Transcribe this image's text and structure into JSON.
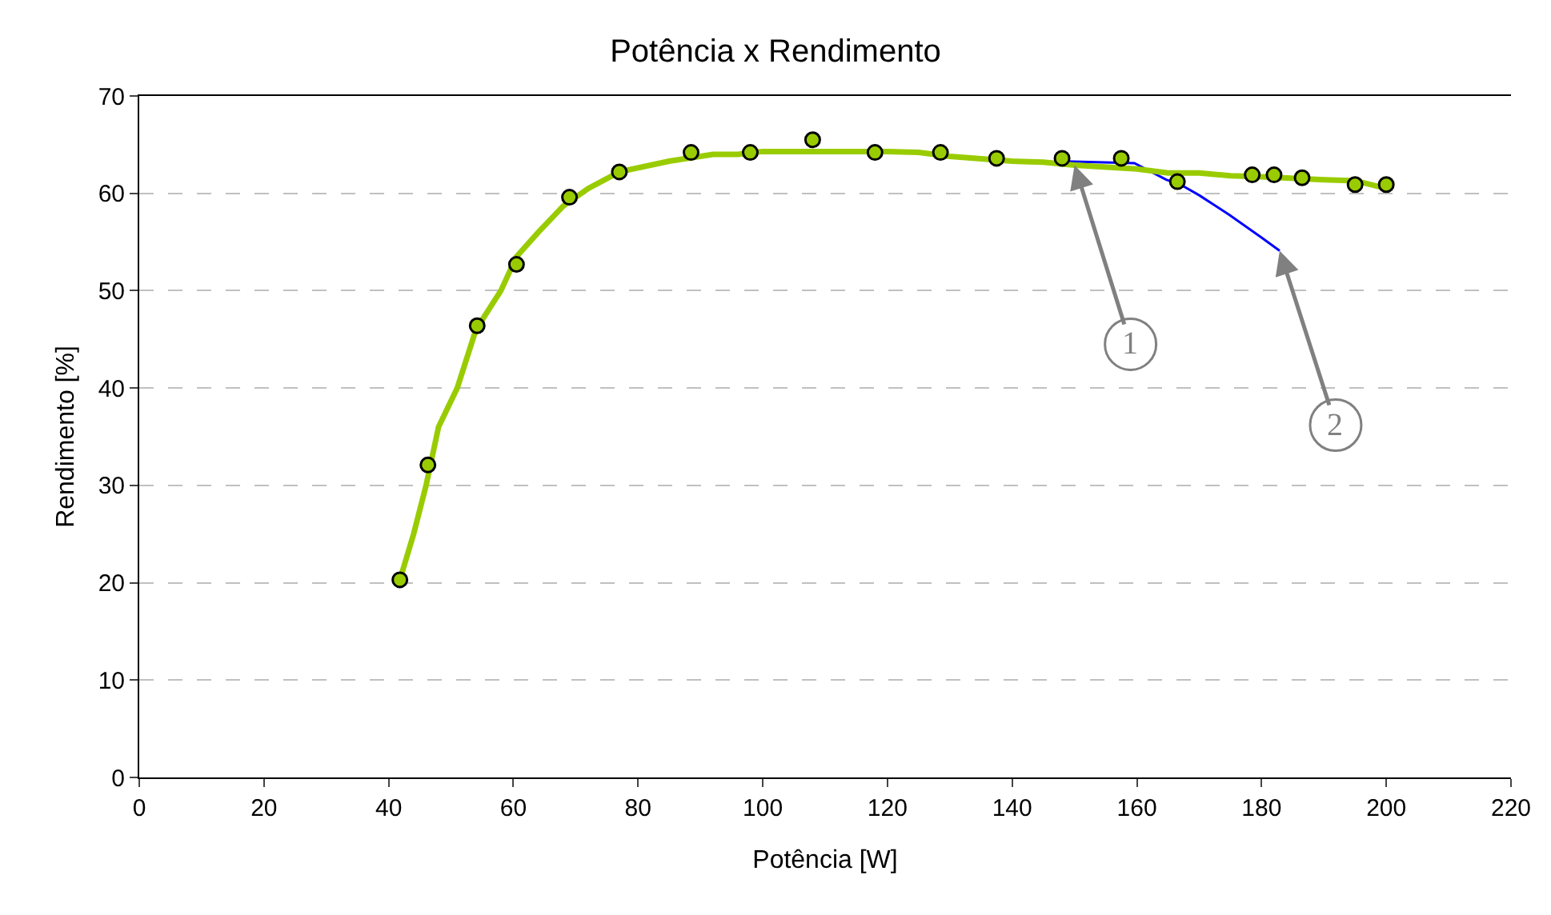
{
  "chart_data": {
    "type": "scatter",
    "title": "Potência x Rendimento",
    "xlabel": "Potência [W]",
    "ylabel": "Rendimento [%]",
    "xlim": [
      0,
      220
    ],
    "xticks": [
      0,
      20,
      40,
      60,
      80,
      100,
      120,
      140,
      160,
      180,
      200,
      220
    ],
    "ylim": [
      0,
      70
    ],
    "yticks": [
      0,
      10,
      20,
      30,
      40,
      50,
      60,
      70
    ],
    "grid": "y",
    "series": [
      {
        "type": "line",
        "color": "#0000ff",
        "x": [
          147.2,
          159.6,
          164.7,
          167,
          170,
          174.8,
          179.9,
          182.9
        ],
        "values": [
          63.3,
          63.1,
          61.4,
          60.9,
          59.8,
          57.8,
          55.5,
          54.1
        ]
      },
      {
        "type": "line",
        "color": "#99cc00",
        "x": [
          41.8,
          44,
          46,
          48,
          51,
          54,
          58,
          60.5,
          64,
          68,
          72,
          77,
          85,
          92,
          96,
          100,
          120,
          125,
          130,
          140,
          145,
          150,
          160,
          165,
          170,
          175,
          180,
          190,
          195,
          200
        ],
        "values": [
          20.3,
          25,
          30,
          36,
          40,
          46,
          50,
          53.5,
          56,
          58.7,
          60.5,
          62.2,
          63.3,
          64,
          64,
          64.3,
          64.3,
          64.2,
          63.8,
          63.3,
          63.2,
          62.9,
          62.5,
          62.1,
          62.1,
          61.8,
          61.7,
          61.4,
          61.3,
          60.5
        ]
      },
      {
        "marker": "circle",
        "color": "#99cc00",
        "x": [
          41.8,
          46.3,
          54.2,
          60.5,
          69,
          77,
          88.5,
          98,
          108,
          118,
          128.5,
          137.5,
          148,
          157.5,
          166.5,
          178.5,
          182,
          186.5,
          195,
          200
        ],
        "values": [
          20.3,
          32.1,
          46.4,
          52.7,
          59.6,
          62.2,
          64.2,
          64.2,
          65.5,
          64.2,
          64.2,
          63.6,
          63.6,
          63.6,
          61.2,
          61.9,
          61.9,
          61.6,
          60.9,
          60.9
        ]
      }
    ],
    "annotations": [
      {
        "text": "1",
        "x": 150,
        "y": 62.9
      },
      {
        "text": "2",
        "x": 182.9,
        "y": 54.1
      }
    ]
  }
}
